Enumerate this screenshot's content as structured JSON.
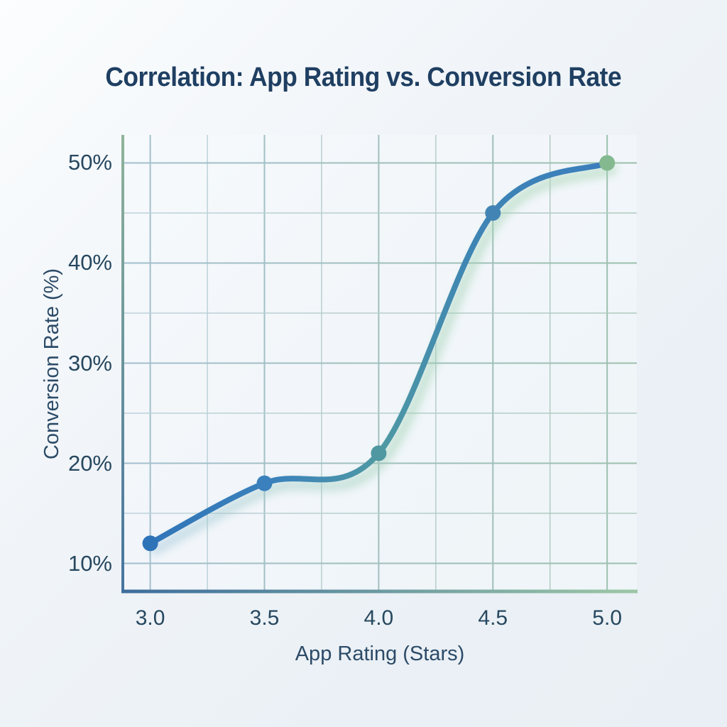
{
  "chart_data": {
    "type": "line",
    "title": "Correlation: App Rating vs. Conversion Rate",
    "xlabel": "App Rating (Stars)",
    "ylabel": "Conversion Rate (%)",
    "x": [
      3.0,
      3.5,
      4.0,
      4.5,
      5.0
    ],
    "series": [
      {
        "name": "Conversion Rate (%)",
        "values": [
          12,
          18,
          21,
          45,
          50
        ]
      }
    ],
    "x_ticks": [
      {
        "value": 3.0,
        "label": "3.0"
      },
      {
        "value": 3.5,
        "label": "3.5"
      },
      {
        "value": 4.0,
        "label": "4.0"
      },
      {
        "value": 4.5,
        "label": "4.5"
      },
      {
        "value": 5.0,
        "label": "5.0"
      }
    ],
    "y_ticks": [
      {
        "value": 10,
        "label": "10%"
      },
      {
        "value": 20,
        "label": "20%"
      },
      {
        "value": 30,
        "label": "30%"
      },
      {
        "value": 40,
        "label": "40%"
      },
      {
        "value": 50,
        "label": "50%"
      }
    ],
    "xlim": [
      2.88,
      5.13
    ],
    "ylim": [
      7.2,
      52.8
    ],
    "x_minor_step": 0.25,
    "y_minor_step": 5,
    "grid": true,
    "legend": false,
    "colors": {
      "title_text": "#1f3f62",
      "tick_text": "#27485f",
      "axis_label_text": "#2c4b68",
      "line_gradient": [
        "#2e73b8",
        "#3b82bb",
        "#4f99a3",
        "#3e85b4",
        "#3a7cc0"
      ],
      "glow_gradient": [
        "#9fc3de",
        "#9fd0b4",
        "#a3d4ae"
      ],
      "point_colors": [
        "#2e73b8",
        "#3a80bd",
        "#4f98a2",
        "#4285b5",
        "#84b990"
      ],
      "grid_minor_left": "#bed2dc",
      "grid_minor_right": "#b0cabe",
      "grid_major_left": "#a3bfce",
      "grid_major_right": "#9cc0ad",
      "axis_left_top": "#8fb49a",
      "axis_left_bottom": "#46749f",
      "axis_bottom_left": "#3d6d9c",
      "axis_bottom_right": "#9cc7a6",
      "plot_interior": "#f6fafc"
    }
  }
}
